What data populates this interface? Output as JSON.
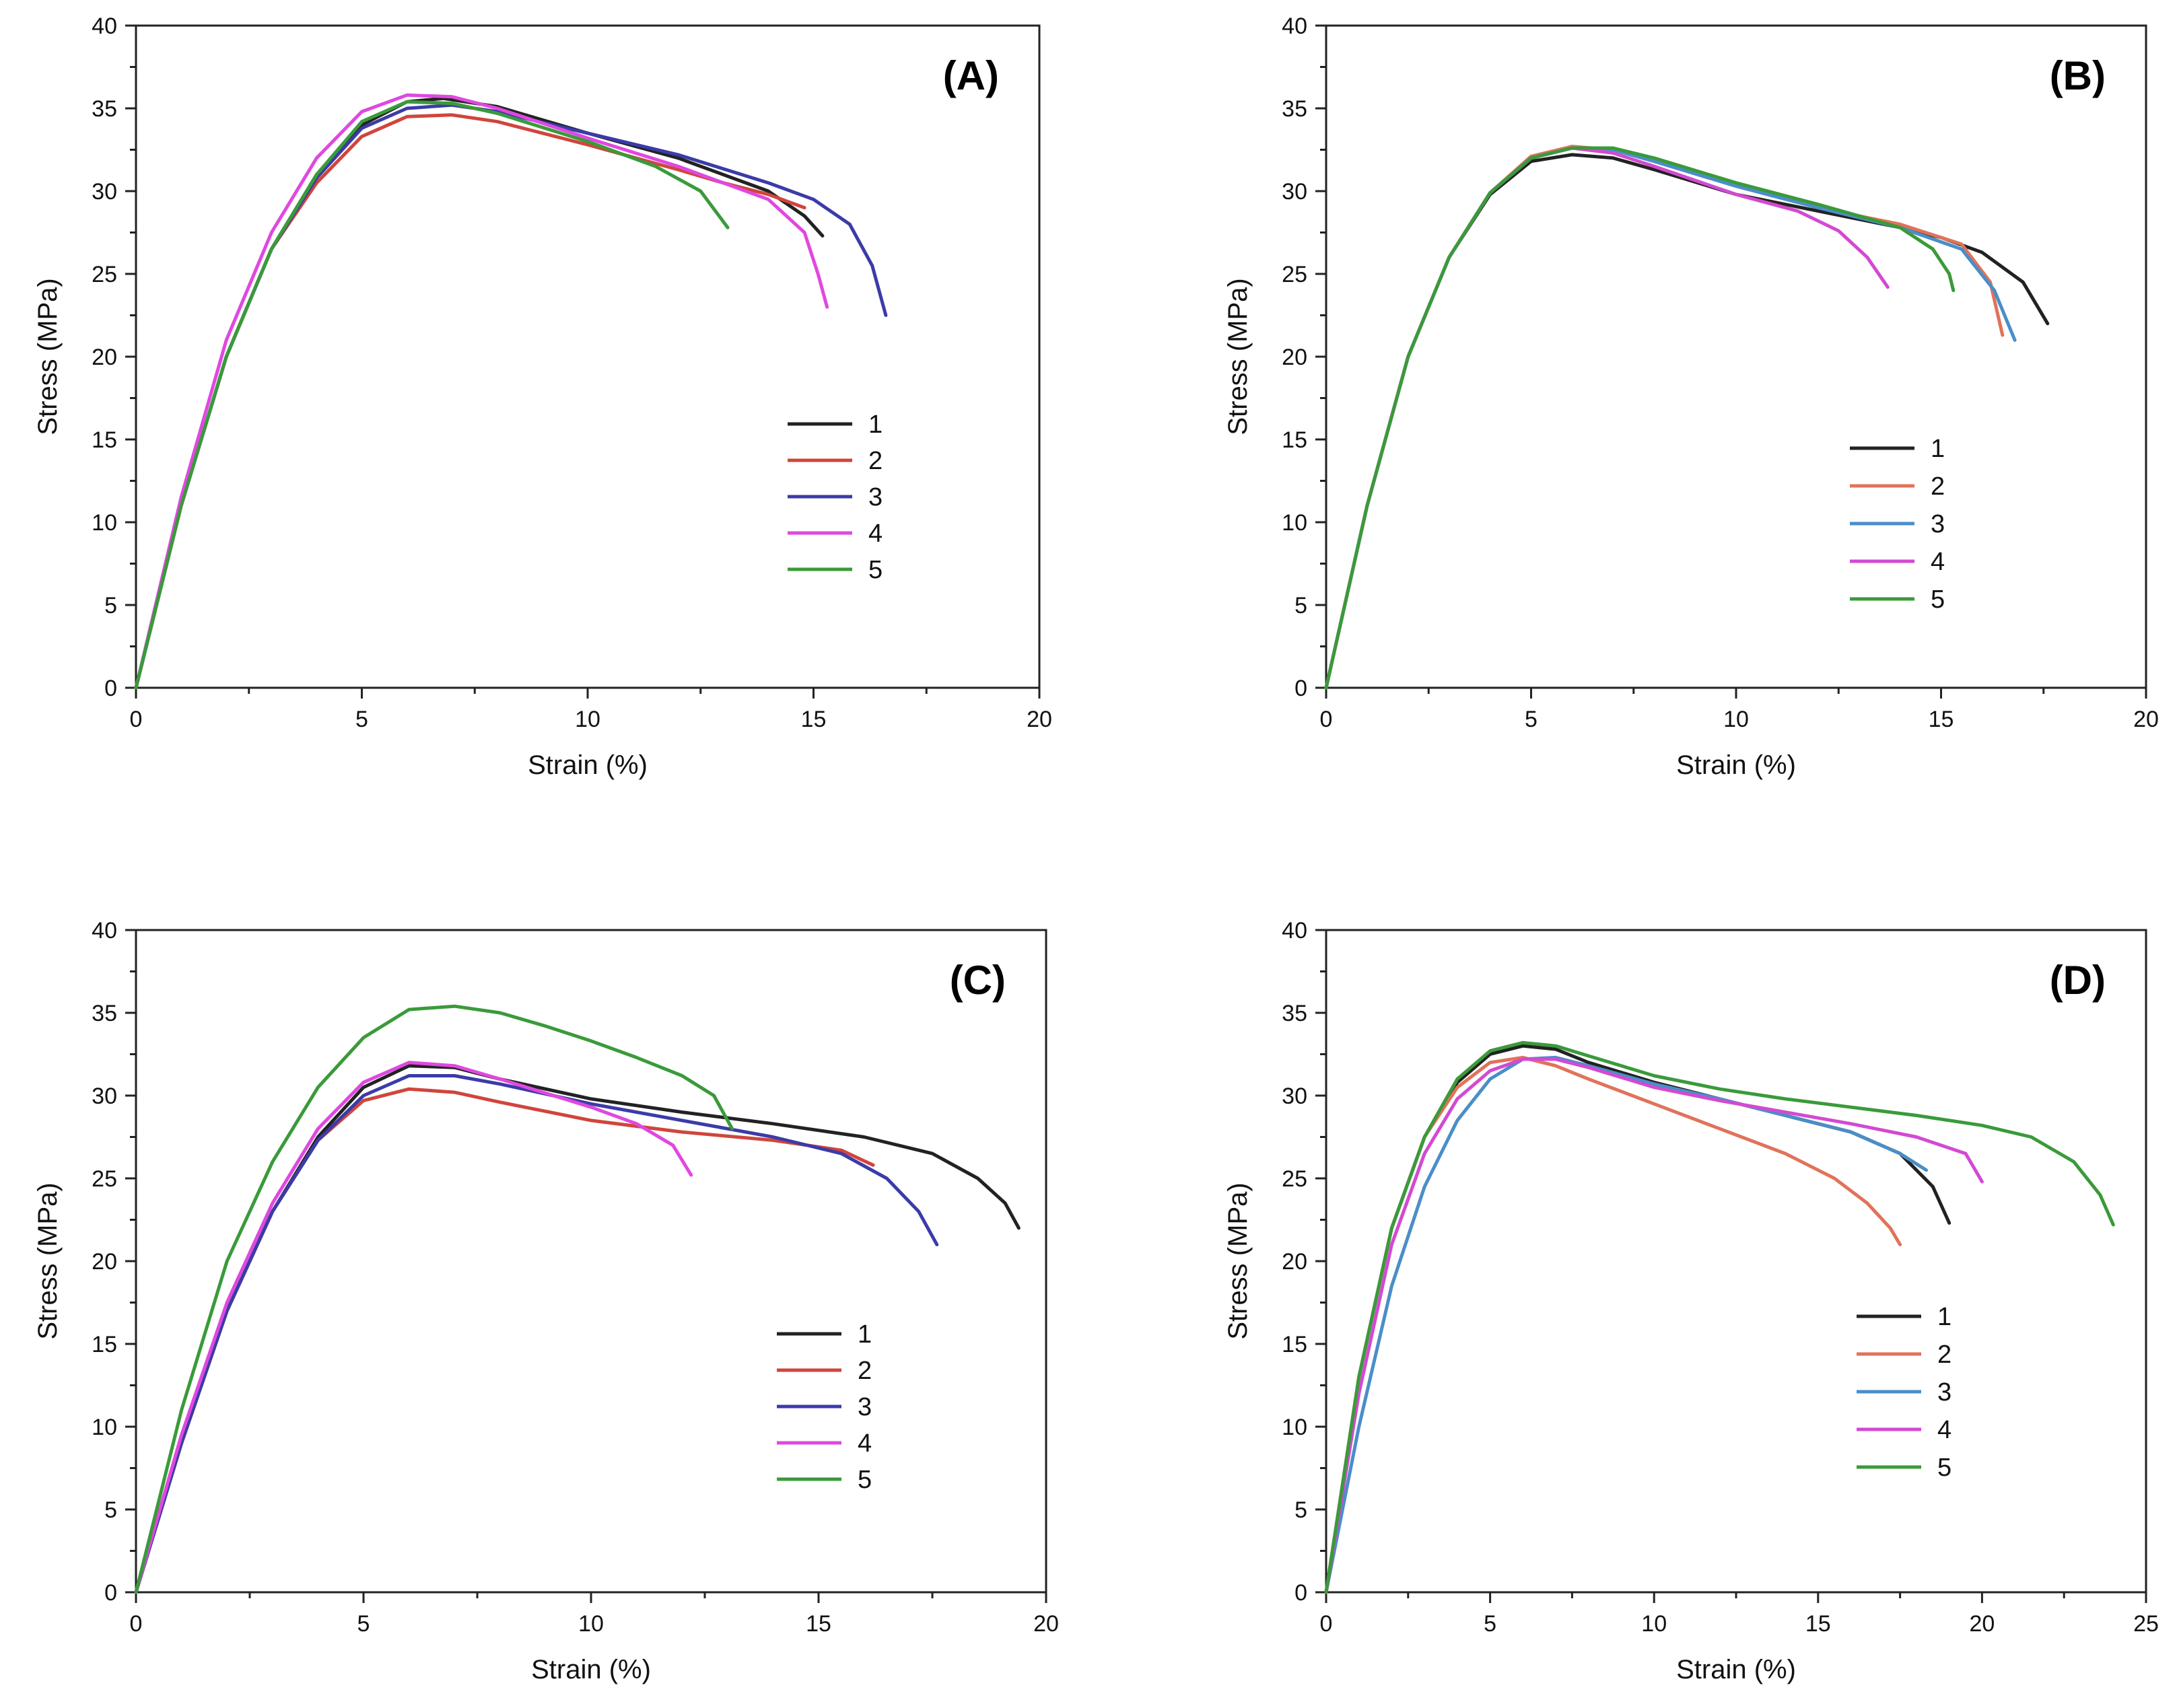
{
  "chart_data": [
    {
      "type": "line",
      "panel": "(A)",
      "xlabel": "Strain (%)",
      "ylabel": "Stress (MPa)",
      "xlim": [
        0,
        20
      ],
      "ylim": [
        0,
        40
      ],
      "xticks": [
        0,
        5,
        10,
        15,
        20
      ],
      "yticks": [
        0,
        5,
        10,
        15,
        20,
        25,
        30,
        35,
        40
      ],
      "legend_position": "center-right",
      "series": [
        {
          "name": "1",
          "color": "#222222",
          "x": [
            0,
            1,
            2,
            3,
            4,
            5,
            6,
            6.8,
            8,
            10,
            12,
            14,
            14.8,
            15.2
          ],
          "y": [
            0,
            11,
            20,
            26.5,
            31,
            34,
            35.4,
            35.6,
            35.1,
            33.5,
            32,
            30,
            28.5,
            27.3
          ]
        },
        {
          "name": "2",
          "color": "#d0453c",
          "x": [
            0,
            1,
            2,
            3,
            4,
            5,
            6,
            7,
            8,
            10,
            12,
            13,
            14,
            14.8
          ],
          "y": [
            0,
            11,
            20,
            26.5,
            30.5,
            33.3,
            34.5,
            34.6,
            34.2,
            32.8,
            31.3,
            30.5,
            29.8,
            29.0
          ]
        },
        {
          "name": "3",
          "color": "#3b3ba8",
          "x": [
            0,
            1,
            2,
            3,
            4,
            5,
            6,
            7,
            8,
            10,
            12,
            14,
            15,
            15.8,
            16.3,
            16.6
          ],
          "y": [
            0,
            11,
            20,
            26.5,
            30.8,
            33.8,
            35.0,
            35.2,
            34.8,
            33.5,
            32.2,
            30.5,
            29.5,
            28.0,
            25.5,
            22.5
          ]
        },
        {
          "name": "4",
          "color": "#e048e0",
          "x": [
            0,
            1,
            2,
            3,
            4,
            5,
            6,
            7,
            8,
            10,
            12,
            14,
            14.8,
            15.1,
            15.3
          ],
          "y": [
            0,
            11.5,
            21,
            27.5,
            32,
            34.8,
            35.8,
            35.7,
            35.0,
            33.2,
            31.5,
            29.5,
            27.5,
            25.0,
            23.0
          ]
        },
        {
          "name": "5",
          "color": "#3a9a3a",
          "x": [
            0,
            1,
            2,
            3,
            4,
            5,
            6,
            7,
            8,
            10,
            11.5,
            12.5,
            13.1
          ],
          "y": [
            0,
            11,
            20,
            26.5,
            31,
            34.2,
            35.4,
            35.3,
            34.7,
            33.0,
            31.5,
            30.0,
            27.8
          ]
        }
      ]
    },
    {
      "type": "line",
      "panel": "(B)",
      "xlabel": "Strain (%)",
      "ylabel": "Stress (MPa)",
      "xlim": [
        0,
        20
      ],
      "ylim": [
        0,
        40
      ],
      "xticks": [
        0,
        5,
        10,
        15,
        20
      ],
      "yticks": [
        0,
        5,
        10,
        15,
        20,
        25,
        30,
        35,
        40
      ],
      "legend_position": "center-right",
      "series": [
        {
          "name": "1",
          "color": "#222222",
          "x": [
            0,
            1,
            2,
            3,
            4,
            5,
            6,
            7,
            8,
            10,
            12,
            14,
            15,
            16,
            17,
            17.6
          ],
          "y": [
            0,
            11,
            20,
            26,
            29.8,
            31.8,
            32.2,
            32.0,
            31.3,
            29.8,
            28.8,
            27.8,
            27.2,
            26.3,
            24.5,
            22.0
          ]
        },
        {
          "name": "2",
          "color": "#e0735a",
          "x": [
            0,
            1,
            2,
            3,
            4,
            5,
            6,
            7,
            8,
            10,
            12,
            14,
            15.5,
            16.2,
            16.5
          ],
          "y": [
            0,
            11,
            20,
            26,
            29.9,
            32.1,
            32.7,
            32.5,
            31.8,
            30.3,
            29.0,
            28.0,
            26.8,
            24.5,
            21.3
          ]
        },
        {
          "name": "3",
          "color": "#4a8ec8",
          "x": [
            0,
            1,
            2,
            3,
            4,
            5,
            6,
            7,
            8,
            10,
            12,
            14,
            15.5,
            16.3,
            16.8
          ],
          "y": [
            0,
            11,
            20,
            26,
            29.9,
            32.0,
            32.6,
            32.5,
            31.8,
            30.3,
            29.0,
            27.8,
            26.5,
            24.0,
            21.0
          ]
        },
        {
          "name": "4",
          "color": "#d24ad2",
          "x": [
            0,
            1,
            2,
            3,
            4,
            5,
            6,
            7,
            8,
            10,
            11.5,
            12.5,
            13.2,
            13.7
          ],
          "y": [
            0,
            11,
            20,
            26,
            29.9,
            32.0,
            32.6,
            32.3,
            31.5,
            29.8,
            28.8,
            27.6,
            26.0,
            24.2
          ]
        },
        {
          "name": "5",
          "color": "#3a9a3a",
          "x": [
            0,
            1,
            2,
            3,
            4,
            5,
            6,
            7,
            8,
            10,
            12,
            14,
            14.8,
            15.2,
            15.3
          ],
          "y": [
            0,
            11,
            20,
            26,
            29.9,
            32.0,
            32.6,
            32.6,
            32.0,
            30.5,
            29.2,
            27.8,
            26.5,
            25.0,
            24.0
          ]
        }
      ]
    },
    {
      "type": "line",
      "panel": "(C)",
      "xlabel": "Strain (%)",
      "ylabel": "Stress (MPa)",
      "xlim": [
        0,
        20
      ],
      "ylim": [
        0,
        40
      ],
      "xticks": [
        0,
        5,
        10,
        15,
        20
      ],
      "yticks": [
        0,
        5,
        10,
        15,
        20,
        25,
        30,
        35,
        40
      ],
      "legend_position": "center-right",
      "series": [
        {
          "name": "1",
          "color": "#222222",
          "x": [
            0,
            1,
            2,
            3,
            4,
            5,
            6,
            7,
            8,
            10,
            12,
            14,
            16,
            17.5,
            18.5,
            19.1,
            19.4
          ],
          "y": [
            0,
            9,
            17,
            23,
            27.5,
            30.5,
            31.8,
            31.7,
            31.0,
            29.8,
            29.0,
            28.3,
            27.5,
            26.5,
            25.0,
            23.5,
            22.0
          ]
        },
        {
          "name": "2",
          "color": "#d0453c",
          "x": [
            0,
            1,
            2,
            3,
            4,
            5,
            6,
            7,
            8,
            10,
            12,
            14,
            15.5,
            16.2
          ],
          "y": [
            0,
            9,
            17,
            23,
            27.3,
            29.7,
            30.4,
            30.2,
            29.6,
            28.5,
            27.8,
            27.3,
            26.7,
            25.8
          ]
        },
        {
          "name": "3",
          "color": "#3b3ba8",
          "x": [
            0,
            1,
            2,
            3,
            4,
            5,
            6,
            7,
            8,
            10,
            12,
            14,
            15.5,
            16.5,
            17.2,
            17.6
          ],
          "y": [
            0,
            9,
            17,
            23,
            27.3,
            30.0,
            31.2,
            31.2,
            30.7,
            29.5,
            28.5,
            27.5,
            26.5,
            25.0,
            23.0,
            21.0
          ]
        },
        {
          "name": "4",
          "color": "#e048e0",
          "x": [
            0,
            1,
            2,
            3,
            4,
            5,
            6,
            7,
            8,
            10,
            11,
            11.8,
            12.2
          ],
          "y": [
            0,
            9.5,
            17.5,
            23.5,
            28,
            30.8,
            32.0,
            31.8,
            31.0,
            29.3,
            28.3,
            27.0,
            25.2
          ]
        },
        {
          "name": "5",
          "color": "#3a9a3a",
          "x": [
            0,
            1,
            2,
            3,
            4,
            5,
            6,
            7,
            8,
            9,
            10,
            11,
            12,
            12.7,
            13.1
          ],
          "y": [
            0,
            11,
            20,
            26,
            30.5,
            33.5,
            35.2,
            35.4,
            35.0,
            34.2,
            33.3,
            32.3,
            31.2,
            30.0,
            28.0
          ]
        }
      ]
    },
    {
      "type": "line",
      "panel": "(D)",
      "xlabel": "Strain (%)",
      "ylabel": "Stress (MPa)",
      "xlim": [
        0,
        25
      ],
      "ylim": [
        0,
        40
      ],
      "xticks": [
        0,
        5,
        10,
        15,
        20,
        25
      ],
      "yticks": [
        0,
        5,
        10,
        15,
        20,
        25,
        30,
        35,
        40
      ],
      "legend_position": "center-right",
      "series": [
        {
          "name": "1",
          "color": "#222222",
          "x": [
            0,
            1,
            2,
            3,
            4,
            5,
            6,
            7,
            8,
            10,
            12,
            14,
            16,
            17.5,
            18.5,
            19.0
          ],
          "y": [
            0,
            13,
            22,
            27.5,
            30.8,
            32.5,
            33.0,
            32.8,
            32.0,
            30.8,
            29.8,
            28.8,
            27.8,
            26.5,
            24.5,
            22.3
          ]
        },
        {
          "name": "2",
          "color": "#e0735a",
          "x": [
            0,
            1,
            2,
            3,
            4,
            5,
            6,
            7,
            8,
            10,
            12,
            14,
            15.5,
            16.5,
            17.2,
            17.5
          ],
          "y": [
            0,
            13,
            22,
            27.5,
            30.5,
            32.0,
            32.3,
            31.8,
            31.0,
            29.5,
            28.0,
            26.5,
            25.0,
            23.5,
            22.0,
            21.0
          ]
        },
        {
          "name": "3",
          "color": "#4a8ec8",
          "x": [
            0,
            1,
            2,
            3,
            4,
            5,
            6,
            7,
            8,
            10,
            12,
            14,
            16,
            17.5,
            18.3
          ],
          "y": [
            0,
            10,
            18.5,
            24.5,
            28.5,
            31.0,
            32.2,
            32.3,
            31.8,
            30.7,
            29.8,
            28.8,
            27.8,
            26.5,
            25.5
          ]
        },
        {
          "name": "4",
          "color": "#d24ad2",
          "x": [
            0,
            1,
            2,
            3,
            4,
            5,
            6,
            7,
            8,
            10,
            12,
            14,
            16,
            18,
            19.5,
            20.0
          ],
          "y": [
            0,
            12,
            21,
            26.5,
            29.8,
            31.5,
            32.2,
            32.2,
            31.7,
            30.5,
            29.7,
            29.0,
            28.3,
            27.5,
            26.5,
            24.8
          ]
        },
        {
          "name": "5",
          "color": "#3a9a3a",
          "x": [
            0,
            1,
            2,
            3,
            4,
            5,
            6,
            7,
            8,
            10,
            12,
            14,
            16,
            18,
            20,
            21.5,
            22.8,
            23.6,
            24.0
          ],
          "y": [
            0,
            13,
            22,
            27.5,
            31,
            32.7,
            33.2,
            33.0,
            32.4,
            31.2,
            30.4,
            29.8,
            29.3,
            28.8,
            28.2,
            27.5,
            26.0,
            24.0,
            22.2
          ]
        }
      ]
    }
  ]
}
